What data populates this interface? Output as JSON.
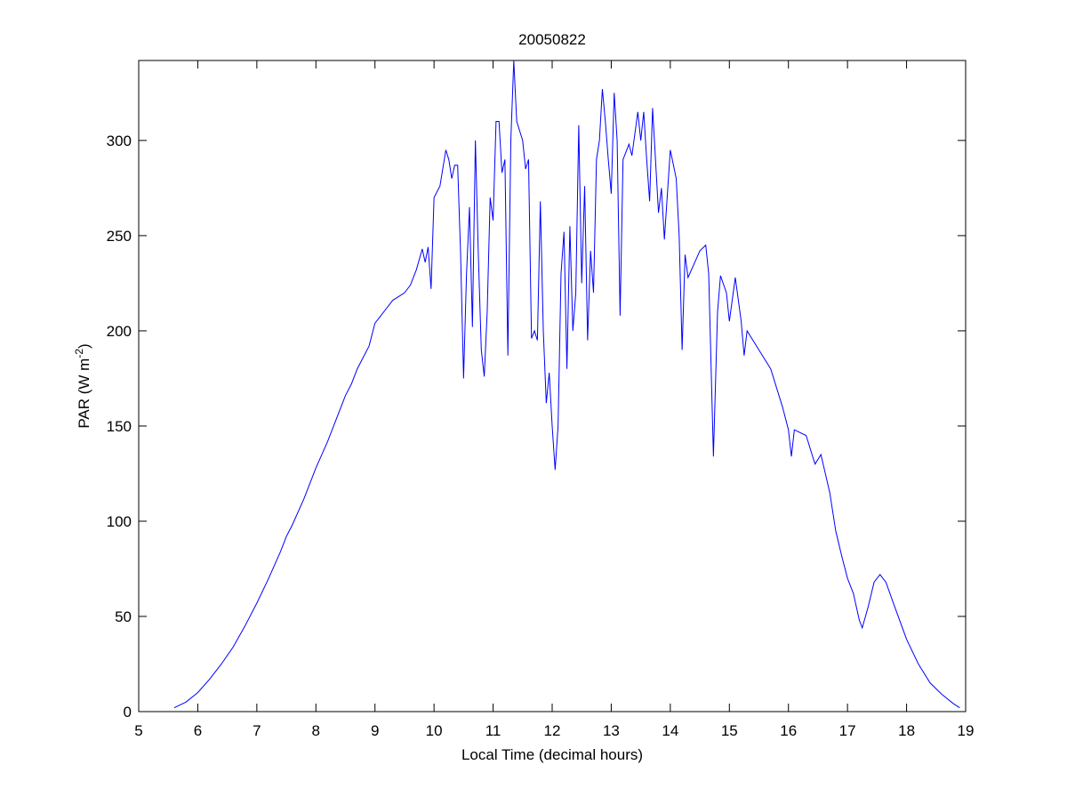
{
  "chart_data": {
    "type": "line",
    "title": "20050822",
    "x_label": "Local Time (decimal hours)",
    "y_label": "PAR (W m",
    "y_label_superscript": "-2",
    "y_label_suffix": ")",
    "color": "#0000ff",
    "x": [
      5.6,
      5.8,
      6.0,
      6.2,
      6.4,
      6.6,
      6.8,
      7.0,
      7.2,
      7.4,
      7.5,
      7.6,
      7.8,
      8.0,
      8.1,
      8.2,
      8.3,
      8.4,
      8.5,
      8.6,
      8.7,
      8.8,
      8.9,
      9.0,
      9.1,
      9.2,
      9.3,
      9.4,
      9.5,
      9.6,
      9.7,
      9.8,
      9.85,
      9.9,
      9.95,
      10.0,
      10.1,
      10.2,
      10.25,
      10.3,
      10.35,
      10.4,
      10.45,
      10.5,
      10.55,
      10.6,
      10.65,
      10.7,
      10.75,
      10.8,
      10.85,
      10.9,
      10.95,
      11.0,
      11.05,
      11.1,
      11.15,
      11.2,
      11.25,
      11.3,
      11.35,
      11.4,
      11.5,
      11.55,
      11.6,
      11.65,
      11.7,
      11.75,
      11.8,
      11.85,
      11.9,
      11.95,
      12.0,
      12.05,
      12.1,
      12.15,
      12.2,
      12.25,
      12.3,
      12.35,
      12.4,
      12.45,
      12.5,
      12.55,
      12.6,
      12.65,
      12.7,
      12.75,
      12.8,
      12.85,
      12.9,
      12.95,
      13.0,
      13.05,
      13.1,
      13.15,
      13.2,
      13.3,
      13.35,
      13.45,
      13.5,
      13.55,
      13.6,
      13.65,
      13.7,
      13.8,
      13.85,
      13.9,
      14.0,
      14.1,
      14.15,
      14.2,
      14.25,
      14.3,
      14.4,
      14.5,
      14.6,
      14.65,
      14.7,
      14.73,
      14.8,
      14.85,
      14.95,
      15.0,
      15.1,
      15.2,
      15.25,
      15.3,
      15.5,
      15.7,
      15.9,
      16.0,
      16.05,
      16.1,
      16.3,
      16.45,
      16.55,
      16.7,
      16.8,
      16.9,
      17.0,
      17.1,
      17.2,
      17.25,
      17.35,
      17.45,
      17.55,
      17.65,
      17.8,
      18.0,
      18.2,
      18.4,
      18.6,
      18.8,
      18.9
    ],
    "values": [
      2,
      5,
      10,
      17,
      25,
      34,
      45,
      57,
      70,
      84,
      92,
      98,
      112,
      128,
      135,
      142,
      150,
      158,
      166,
      172,
      180,
      186,
      192,
      204,
      208,
      212,
      216,
      218,
      220,
      224,
      232,
      243,
      236,
      244,
      222,
      270,
      276,
      295,
      290,
      280,
      287,
      287,
      240,
      175,
      230,
      265,
      202,
      300,
      240,
      190,
      176,
      210,
      270,
      258,
      310,
      310,
      283,
      290,
      187,
      300,
      342,
      310,
      300,
      285,
      290,
      196,
      200,
      195,
      268,
      200,
      162,
      178,
      150,
      127,
      150,
      230,
      252,
      180,
      255,
      200,
      220,
      308,
      225,
      276,
      195,
      242,
      220,
      290,
      300,
      327,
      310,
      290,
      272,
      325,
      300,
      208,
      290,
      298,
      292,
      315,
      300,
      315,
      290,
      268,
      317,
      262,
      275,
      248,
      295,
      280,
      250,
      190,
      240,
      228,
      235,
      242,
      245,
      230,
      170,
      134,
      210,
      229,
      220,
      205,
      228,
      205,
      187,
      200,
      190,
      180,
      160,
      148,
      134,
      148,
      145,
      130,
      135,
      115,
      95,
      82,
      70,
      62,
      48,
      44,
      55,
      68,
      72,
      68,
      55,
      38,
      25,
      15,
      9,
      4,
      2
    ],
    "xlim": [
      5,
      19
    ],
    "ylim": [
      0,
      342
    ],
    "xticks": [
      5,
      6,
      7,
      8,
      9,
      10,
      11,
      12,
      13,
      14,
      15,
      16,
      17,
      18,
      19
    ],
    "yticks": [
      0,
      50,
      100,
      150,
      200,
      250,
      300
    ]
  }
}
